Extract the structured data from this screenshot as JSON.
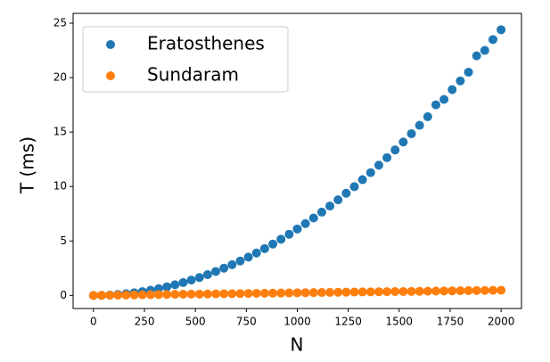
{
  "chart_data": {
    "type": "scatter",
    "x_label": "N",
    "y_label": "T (ms)",
    "x": [
      0,
      40,
      80,
      120,
      160,
      200,
      240,
      280,
      320,
      360,
      400,
      440,
      480,
      520,
      560,
      600,
      640,
      680,
      720,
      760,
      800,
      840,
      880,
      920,
      960,
      1000,
      1040,
      1080,
      1120,
      1160,
      1200,
      1240,
      1280,
      1320,
      1360,
      1400,
      1440,
      1480,
      1520,
      1560,
      1600,
      1640,
      1680,
      1720,
      1760,
      1800,
      1840,
      1880,
      1920,
      1960,
      2000
    ],
    "series": [
      {
        "name": "Eratosthenes",
        "color": "#1f77b4",
        "values": [
          0,
          0.01,
          0.04,
          0.09,
          0.16,
          0.24,
          0.35,
          0.48,
          0.62,
          0.79,
          0.98,
          1.18,
          1.41,
          1.65,
          1.91,
          2.2,
          2.5,
          2.82,
          3.16,
          3.52,
          3.9,
          4.3,
          4.72,
          5.16,
          5.62,
          6.1,
          6.6,
          7.11,
          7.65,
          8.21,
          8.78,
          9.38,
          9.99,
          10.63,
          11.28,
          11.96,
          12.65,
          13.36,
          14.09,
          14.85,
          15.62,
          16.41,
          17.5,
          18.0,
          18.9,
          19.7,
          20.5,
          22.0,
          22.5,
          23.5,
          24.4
        ]
      },
      {
        "name": "Sundaram",
        "color": "#ff7f0e",
        "values": [
          0,
          0.01,
          0.02,
          0.03,
          0.04,
          0.05,
          0.06,
          0.07,
          0.08,
          0.09,
          0.1,
          0.11,
          0.12,
          0.12,
          0.13,
          0.14,
          0.15,
          0.16,
          0.17,
          0.18,
          0.19,
          0.2,
          0.21,
          0.22,
          0.23,
          0.24,
          0.25,
          0.26,
          0.27,
          0.28,
          0.29,
          0.3,
          0.31,
          0.32,
          0.33,
          0.34,
          0.35,
          0.36,
          0.36,
          0.37,
          0.38,
          0.39,
          0.4,
          0.41,
          0.42,
          0.43,
          0.44,
          0.45,
          0.46,
          0.47,
          0.48
        ]
      }
    ],
    "xlim": [
      -100,
      2100
    ],
    "ylim": [
      -1.2,
      25.9
    ],
    "xticks": [
      0,
      250,
      500,
      750,
      1000,
      1250,
      1500,
      1750,
      2000
    ],
    "yticks": [
      0,
      5,
      10,
      15,
      20,
      25
    ],
    "legend": "upper left"
  }
}
